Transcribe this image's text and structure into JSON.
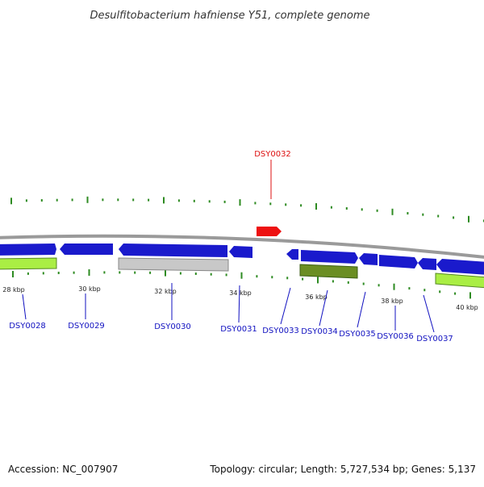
{
  "title": "Desulfitobacterium hafniense Y51, complete genome",
  "accession_text": "Accession: NC_007907",
  "topology_text": "Topology: circular; Length: 5,727,534 bp; Genes: 5,137",
  "colors": {
    "background": "#ffffff",
    "genome_line": "#9a9a9a",
    "gene_forward": "#1a1acc",
    "gene_reverse": "#1a1acc",
    "gene_highlight": "#ee1111",
    "gene_grey": "#c8c8c8",
    "gene_olive": "#6b8e23",
    "gene_lime": "#aaee44",
    "tick": "#2e8b22",
    "label_blue": "#1010c0",
    "label_red": "#dd1010"
  },
  "scale": {
    "unit": "kbp",
    "labels": [
      "28 kbp",
      "30 kbp",
      "32 kbp",
      "34 kbp",
      "36 kbp",
      "38 kbp",
      "40 kbp"
    ]
  },
  "genes": [
    {
      "label": "DSY0028",
      "highlight": false
    },
    {
      "label": "DSY0029",
      "highlight": false
    },
    {
      "label": "DSY0030",
      "highlight": false
    },
    {
      "label": "DSY0031",
      "highlight": false
    },
    {
      "label": "DSY0032",
      "highlight": true
    },
    {
      "label": "DSY0033",
      "highlight": false
    },
    {
      "label": "DSY0034",
      "highlight": false
    },
    {
      "label": "DSY0035",
      "highlight": false
    },
    {
      "label": "DSY0036",
      "highlight": false
    },
    {
      "label": "DSY0037",
      "highlight": false
    }
  ]
}
